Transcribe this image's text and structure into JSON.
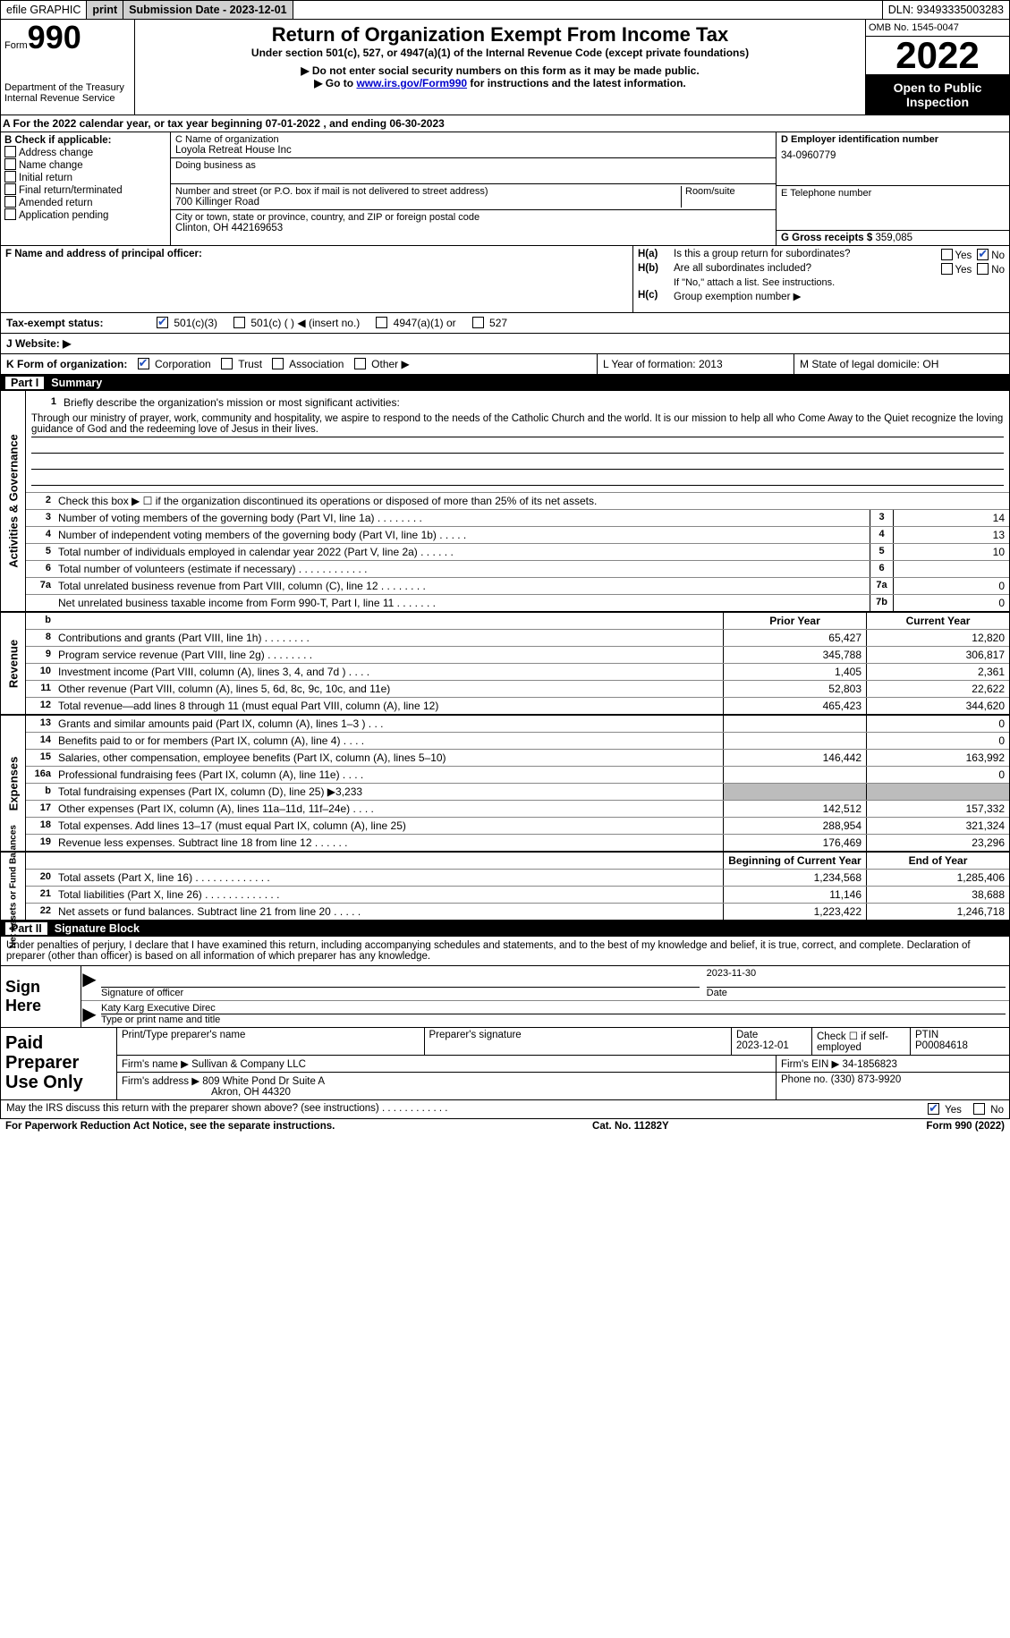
{
  "topbar": {
    "efile": "efile GRAPHIC",
    "print": "print",
    "sub_label": "Submission Date - 2023-12-01",
    "dln_label": "DLN: 93493335003283"
  },
  "header": {
    "form_word": "Form",
    "form_num": "990",
    "dept": "Department of the Treasury",
    "irs": "Internal Revenue Service",
    "title": "Return of Organization Exempt From Income Tax",
    "subtitle": "Under section 501(c), 527, or 4947(a)(1) of the Internal Revenue Code (except private foundations)",
    "note1": "▶ Do not enter social security numbers on this form as it may be made public.",
    "note2_pre": "▶ Go to ",
    "note2_link": "www.irs.gov/Form990",
    "note2_post": " for instructions and the latest information.",
    "omb": "OMB No. 1545-0047",
    "year": "2022",
    "open": "Open to Public Inspection"
  },
  "lineA": {
    "pre": "A For the 2022 calendar year, or tax year beginning ",
    "begin": "07-01-2022",
    "mid": " , and ending ",
    "end": "06-30-2023"
  },
  "colB": {
    "label": "B Check if applicable:",
    "items": [
      "Address change",
      "Name change",
      "Initial return",
      "Final return/terminated",
      "Amended return",
      "Application pending"
    ]
  },
  "colC": {
    "name_label": "C Name of organization",
    "name": "Loyola Retreat House Inc",
    "dba_label": "Doing business as",
    "addr_label": "Number and street (or P.O. box if mail is not delivered to street address)",
    "room_label": "Room/suite",
    "addr": "700 Killinger Road",
    "city_label": "City or town, state or province, country, and ZIP or foreign postal code",
    "city": "Clinton, OH  442169653"
  },
  "colD": {
    "ein_label": "D Employer identification number",
    "ein": "34-0960779",
    "phone_label": "E Telephone number",
    "gross_label": "G Gross receipts $",
    "gross": "359,085"
  },
  "secF": {
    "label": "F  Name and address of principal officer:"
  },
  "secH": {
    "a_q": "Is this a group return for subordinates?",
    "b_q": "Are all subordinates included?",
    "b_note": "If \"No,\" attach a list. See instructions.",
    "c_label": "Group exemption number ▶",
    "yes": "Yes",
    "no": "No"
  },
  "secI": {
    "label": "Tax-exempt status:",
    "o1": "501(c)(3)",
    "o2": "501(c) (  ) ◀ (insert no.)",
    "o3": "4947(a)(1) or",
    "o4": "527"
  },
  "secJ": {
    "label": "J   Website: ▶"
  },
  "secK": {
    "label": "K Form of organization:",
    "opts": [
      "Corporation",
      "Trust",
      "Association",
      "Other ▶"
    ]
  },
  "secL": {
    "label": "L Year of formation: 2013"
  },
  "secM": {
    "label": "M State of legal domicile: OH"
  },
  "part1": {
    "num": "Part I",
    "title": "Summary"
  },
  "governance": {
    "side": "Activities & Governance",
    "q1": "Briefly describe the organization's mission or most significant activities:",
    "mission": "Through our ministry of prayer, work, community and hospitality, we aspire to respond to the needs of the Catholic Church and the world. It is our mission to help all who Come Away to the Quiet recognize the loving guidance of God and the redeeming love of Jesus in their lives.",
    "q2": "Check this box ▶ ☐  if the organization discontinued its operations or disposed of more than 25% of its net assets.",
    "q3": "Number of voting members of the governing body (Part VI, line 1a)   .    .    .    .    .    .    .    .",
    "q4": "Number of independent voting members of the governing body (Part VI, line 1b)   .    .    .    .    .",
    "q5": "Total number of individuals employed in calendar year 2022 (Part V, line 2a)   .    .    .    .    .    .",
    "q6": "Total number of volunteers (estimate if necessary)    .    .    .    .    .    .    .    .    .    .    .    .",
    "q7a": "Total unrelated business revenue from Part VIII, column (C), line 12    .    .    .    .    .    .    .    .",
    "q7b": "Net unrelated business taxable income from Form 990-T, Part I, line 11   .    .    .    .    .    .    .",
    "v3": "14",
    "v4": "13",
    "v5": "10",
    "v6": "",
    "v7a": "0",
    "v7b": "0"
  },
  "revenue": {
    "side": "Revenue",
    "hdr_b": "b",
    "hdr_prior": "Prior Year",
    "hdr_curr": "Current Year",
    "rows": [
      {
        "n": "8",
        "d": "Contributions and grants (Part VIII, line 1h)   .    .    .    .    .    .    .    .",
        "p": "65,427",
        "c": "12,820"
      },
      {
        "n": "9",
        "d": "Program service revenue (Part VIII, line 2g)   .    .    .    .    .    .    .    .",
        "p": "345,788",
        "c": "306,817"
      },
      {
        "n": "10",
        "d": "Investment income (Part VIII, column (A), lines 3, 4, and 7d )   .    .    .    .",
        "p": "1,405",
        "c": "2,361"
      },
      {
        "n": "11",
        "d": "Other revenue (Part VIII, column (A), lines 5, 6d, 8c, 9c, 10c, and 11e)",
        "p": "52,803",
        "c": "22,622"
      },
      {
        "n": "12",
        "d": "Total revenue—add lines 8 through 11 (must equal Part VIII, column (A), line 12)",
        "p": "465,423",
        "c": "344,620"
      }
    ]
  },
  "expenses": {
    "side": "Expenses",
    "rows": [
      {
        "n": "13",
        "d": "Grants and similar amounts paid (Part IX, column (A), lines 1–3 )   .    .    .",
        "p": "",
        "c": "0"
      },
      {
        "n": "14",
        "d": "Benefits paid to or for members (Part IX, column (A), line 4)   .    .    .    .",
        "p": "",
        "c": "0"
      },
      {
        "n": "15",
        "d": "Salaries, other compensation, employee benefits (Part IX, column (A), lines 5–10)",
        "p": "146,442",
        "c": "163,992"
      },
      {
        "n": "16a",
        "d": "Professional fundraising fees (Part IX, column (A), line 11e)    .    .    .    .",
        "p": "",
        "c": "0"
      },
      {
        "n": "b",
        "d": "Total fundraising expenses (Part IX, column (D), line 25) ▶3,233",
        "p": "shade",
        "c": "shade"
      },
      {
        "n": "17",
        "d": "Other expenses (Part IX, column (A), lines 11a–11d, 11f–24e)   .    .    .    .",
        "p": "142,512",
        "c": "157,332"
      },
      {
        "n": "18",
        "d": "Total expenses. Add lines 13–17 (must equal Part IX, column (A), line 25)",
        "p": "288,954",
        "c": "321,324"
      },
      {
        "n": "19",
        "d": "Revenue less expenses. Subtract line 18 from line 12   .    .    .    .    .    .",
        "p": "176,469",
        "c": "23,296"
      }
    ]
  },
  "netassets": {
    "side": "Net Assets or Fund Balances",
    "hdr_prior": "Beginning of Current Year",
    "hdr_curr": "End of Year",
    "rows": [
      {
        "n": "20",
        "d": "Total assets (Part X, line 16)   .    .    .    .    .    .    .    .    .    .    .    .    .",
        "p": "1,234,568",
        "c": "1,285,406"
      },
      {
        "n": "21",
        "d": "Total liabilities (Part X, line 26)   .    .    .    .    .    .    .    .    .    .    .    .    .",
        "p": "11,146",
        "c": "38,688"
      },
      {
        "n": "22",
        "d": "Net assets or fund balances. Subtract line 21 from line 20   .    .    .    .    .",
        "p": "1,223,422",
        "c": "1,246,718"
      }
    ]
  },
  "part2": {
    "num": "Part II",
    "title": "Signature Block",
    "penalties": "Under penalties of perjury, I declare that I have examined this return, including accompanying schedules and statements, and to the best of my knowledge and belief, it is true, correct, and complete. Declaration of preparer (other than officer) is based on all information of which preparer has any knowledge."
  },
  "sign": {
    "side": "Sign Here",
    "sig_of_officer": "Signature of officer",
    "date": "Date",
    "date_val": "2023-11-30",
    "name_title": "Katy Karg  Executive Direc",
    "type_name": "Type or print name and title"
  },
  "paid": {
    "side": "Paid Preparer Use Only",
    "h1": "Print/Type preparer's name",
    "h2": "Preparer's signature",
    "h3_l": "Date",
    "h3_v": "2023-12-01",
    "h4_l": "Check ☐ if self-employed",
    "h5_l": "PTIN",
    "h5_v": "P00084618",
    "firm_name_l": "Firm's name    ▶",
    "firm_name": "Sullivan & Company LLC",
    "firm_ein_l": "Firm's EIN ▶",
    "firm_ein": "34-1856823",
    "firm_addr_l": "Firm's address ▶",
    "firm_addr": "809 White Pond Dr Suite A",
    "firm_city": "Akron, OH   44320",
    "phone_l": "Phone no.",
    "phone": "(330) 873-9920"
  },
  "footer": {
    "discuss": "May the IRS discuss this return with the preparer shown above? (see instructions)   .    .    .    .    .    .    .    .    .    .    .    .",
    "yes": "Yes",
    "no": "No",
    "pra": "For Paperwork Reduction Act Notice, see the separate instructions.",
    "cat": "Cat. No. 11282Y",
    "form": "Form 990 (2022)"
  }
}
